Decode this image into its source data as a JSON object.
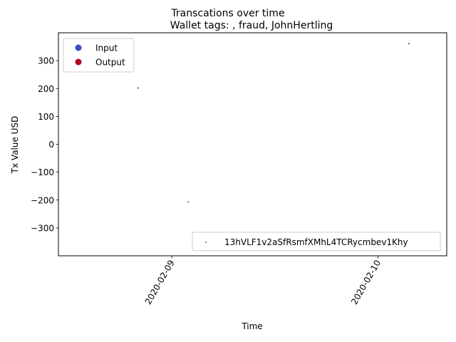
{
  "chart_data": {
    "type": "scatter",
    "suptitle": "Transcations over time",
    "title": "Wallet tags: , fraud, JohnHertling",
    "xlabel": "Time",
    "ylabel": "Tx Value USD",
    "xlim": [
      "2020-02-08T10:48",
      "2020-02-10T08:00"
    ],
    "ylim": [
      -400,
      400
    ],
    "x_ticks": [
      {
        "value": "2020-02-09T00:00",
        "label": "2020-02-09"
      },
      {
        "value": "2020-02-10T00:00",
        "label": "2020-02-10"
      }
    ],
    "y_ticks": [
      {
        "value": -300,
        "label": "−300"
      },
      {
        "value": -200,
        "label": "−200"
      },
      {
        "value": -100,
        "label": "−100"
      },
      {
        "value": 0,
        "label": "0"
      },
      {
        "value": 100,
        "label": "100"
      },
      {
        "value": 200,
        "label": "200"
      },
      {
        "value": 300,
        "label": "300"
      }
    ],
    "grid": false,
    "series": [
      {
        "name": "Input",
        "color": "#3b4cc0",
        "points": [
          {
            "x": "2020-02-09T01:55",
            "y": -207
          }
        ]
      },
      {
        "name": "Output",
        "color": "#b40426",
        "points": [
          {
            "x": "2020-02-08T20:05",
            "y": 202
          },
          {
            "x": "2020-02-10T03:35",
            "y": 361
          }
        ]
      }
    ],
    "legend_top_left": {
      "placement": "upper-left",
      "entries": [
        {
          "label": "Input",
          "color": "#3b4cc0"
        },
        {
          "label": "Output",
          "color": "#b40426"
        }
      ]
    },
    "legend_bottom_right": {
      "placement": "lower-right",
      "entries": [
        {
          "label": "13hVLF1v2aSfRsmfXMhL4TCRycmbev1Khy",
          "color": "#1f77b4"
        }
      ]
    }
  }
}
